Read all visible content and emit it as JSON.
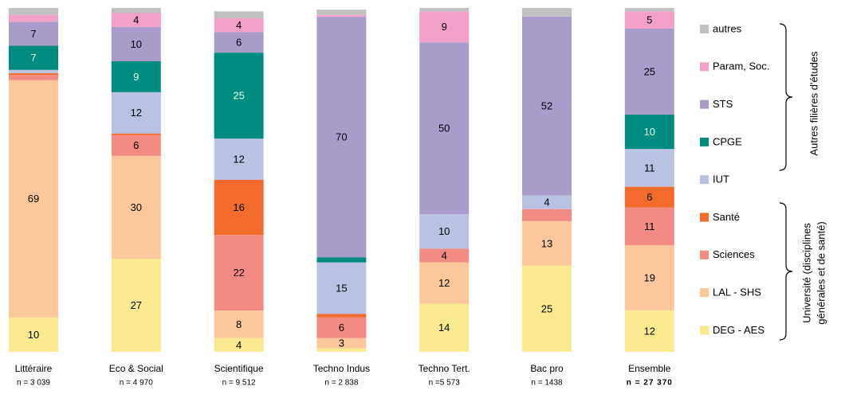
{
  "chart_data": {
    "type": "stacked-bar",
    "categories": [
      "Littéraire",
      "Eco & Social",
      "Scientifique",
      "Techno Indus",
      "Techno Tert.",
      "Bac pro",
      "Ensemble"
    ],
    "n_labels": [
      "n = 3 039",
      "n = 4 970",
      "n = 9 512",
      "n = 2 838",
      "n =5 573",
      "n = 1438",
      "n = 27 370"
    ],
    "bold_last": true,
    "ylim": [
      0,
      100
    ],
    "series": [
      {
        "name": "DEG - AES",
        "color": "#f9ea8f",
        "label_color": "#000",
        "values": [
          10,
          27,
          4,
          1,
          14,
          25,
          12
        ],
        "value_labels": [
          "10",
          "27",
          "4",
          null,
          "14",
          "25",
          "12"
        ]
      },
      {
        "name": "LAL - SHS",
        "color": "#fcc89b",
        "label_color": "#000",
        "values": [
          69,
          30,
          8,
          3,
          12,
          13,
          19
        ],
        "value_labels": [
          "69",
          "30",
          "8",
          "3",
          "12",
          "13",
          "19"
        ]
      },
      {
        "name": "Sciences",
        "color": "#f28b82",
        "label_color": "#000",
        "values": [
          1.5,
          6,
          22,
          6,
          4,
          3.5,
          11
        ],
        "value_labels": [
          null,
          "6",
          "22",
          "6",
          "4",
          null,
          "11"
        ]
      },
      {
        "name": "Santé",
        "color": "#f26b2a",
        "label_color": "#000",
        "values": [
          0.5,
          0.5,
          16,
          1,
          0,
          0,
          6
        ],
        "value_labels": [
          null,
          null,
          "16",
          null,
          null,
          null,
          "6"
        ]
      },
      {
        "name": "IUT",
        "color": "#b9c2e0",
        "label_color": "#000",
        "values": [
          1,
          12,
          12,
          15,
          10,
          4,
          11
        ],
        "value_labels": [
          null,
          "12",
          "12",
          "15",
          "10",
          "4",
          "11"
        ]
      },
      {
        "name": "CPGE",
        "color": "#008b80",
        "label_color": "#e8ffe8",
        "values": [
          7,
          9,
          25,
          1.5,
          0,
          0,
          10
        ],
        "value_labels": [
          "7",
          "9",
          "25",
          null,
          null,
          null,
          "10"
        ]
      },
      {
        "name": "STS",
        "color": "#a99ccb",
        "label_color": "#000",
        "values": [
          7,
          10,
          6,
          70,
          50,
          52,
          25
        ],
        "value_labels": [
          "7",
          "10",
          "6",
          "70",
          "50",
          "52",
          "25"
        ]
      },
      {
        "name": "Param, Soc.",
        "color": "#f2a0c8",
        "label_color": "#000",
        "values": [
          2,
          4,
          4,
          0.5,
          9,
          0,
          5
        ],
        "value_labels": [
          null,
          "4",
          "4",
          null,
          "9",
          null,
          "5"
        ]
      },
      {
        "name": "autres",
        "color": "#c0c0c0",
        "label_color": "#000",
        "values": [
          2,
          1.5,
          2,
          1.5,
          1,
          2.5,
          1
        ],
        "value_labels": [
          null,
          null,
          null,
          null,
          null,
          null,
          null
        ]
      }
    ],
    "legend_groups": [
      {
        "lines": [
          "Autres filières d'études"
        ]
      },
      {
        "lines": [
          "Université (disciplines",
          "générales et de santé)"
        ]
      }
    ]
  }
}
